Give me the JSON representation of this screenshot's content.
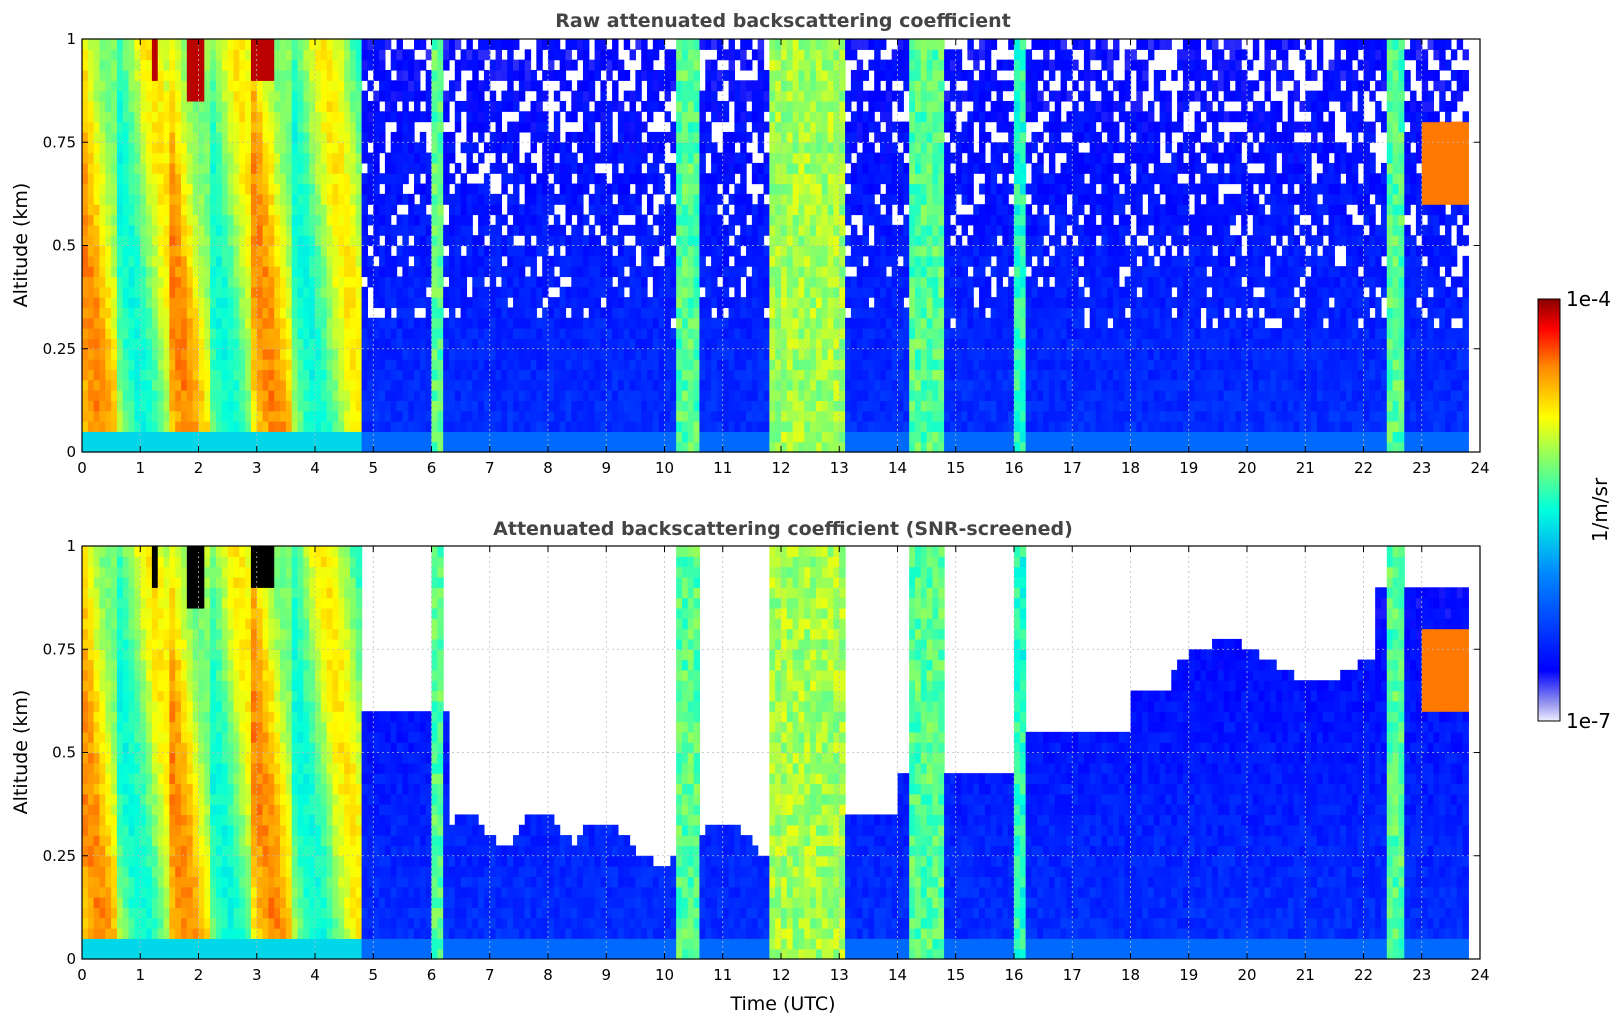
{
  "chart_data": [
    {
      "type": "heatmap",
      "title": "Raw attenuated backscattering coefficient",
      "xlabel": "",
      "ylabel": "Altitude (km)",
      "xlim": [
        0,
        24
      ],
      "ylim": [
        0,
        1
      ],
      "x_ticks": [
        "0",
        "1",
        "2",
        "3",
        "4",
        "5",
        "6",
        "7",
        "8",
        "9",
        "10",
        "11",
        "12",
        "13",
        "14",
        "15",
        "16",
        "17",
        "18",
        "19",
        "20",
        "21",
        "22",
        "23",
        "24"
      ],
      "y_ticks": [
        "0",
        "0.25",
        "0.5",
        "0.75",
        "1"
      ],
      "grid": true,
      "screened": false,
      "data_end_hour": 23.8,
      "description_values": {
        "high_backscatter_period_hours": [
          0,
          4.8
        ],
        "scatter_bands_hours": [
          [
            6.0,
            6.2
          ],
          [
            10.2,
            10.6
          ],
          [
            11.8,
            13.1
          ],
          [
            14.2,
            14.8
          ],
          [
            16.0,
            16.2
          ],
          [
            22.4,
            22.7
          ]
        ]
      }
    },
    {
      "type": "heatmap",
      "title": "Attenuated backscattering coefficient (SNR-screened)",
      "xlabel": "Time (UTC)",
      "ylabel": "Altitude (km)",
      "xlim": [
        0,
        24
      ],
      "ylim": [
        0,
        1
      ],
      "x_ticks": [
        "0",
        "1",
        "2",
        "3",
        "4",
        "5",
        "6",
        "7",
        "8",
        "9",
        "10",
        "11",
        "12",
        "13",
        "14",
        "15",
        "16",
        "17",
        "18",
        "19",
        "20",
        "21",
        "22",
        "23",
        "24"
      ],
      "y_ticks": [
        "0",
        "0.25",
        "0.5",
        "0.75",
        "1"
      ],
      "grid": true,
      "screened": true,
      "data_end_hour": 23.8
    }
  ],
  "colorbar": {
    "label": "1/m/sr",
    "min_label": "1e-7",
    "max_label": "1e-4",
    "scale": "log",
    "colormap": "jet"
  }
}
